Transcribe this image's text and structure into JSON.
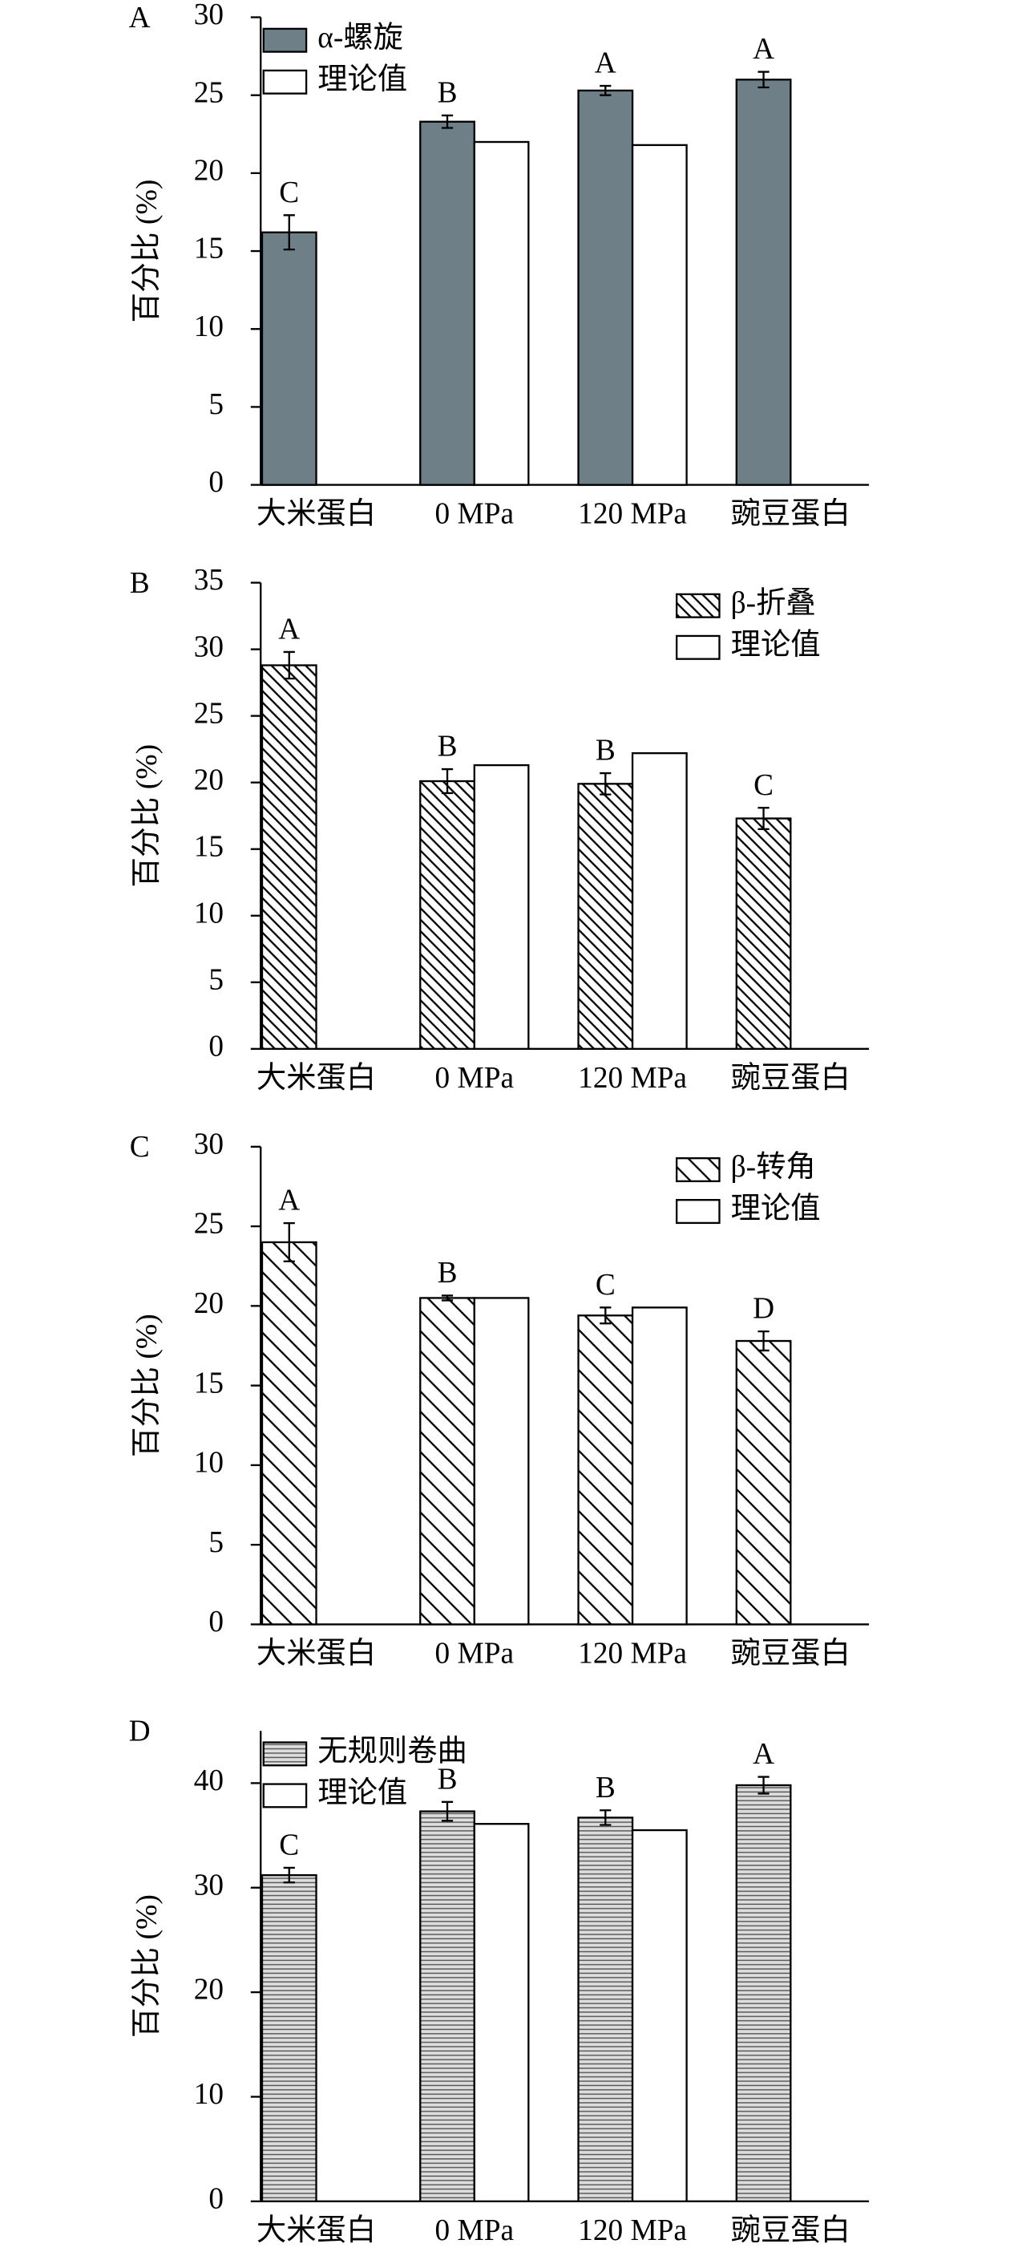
{
  "chart_data": [
    {
      "type": "bar",
      "panel": "A",
      "y_label": "百分比 (%)",
      "categories": [
        "大米蛋白",
        "0 MPa",
        "120 MPa",
        "豌豆蛋白"
      ],
      "series": [
        {
          "name": "α-螺旋",
          "color": "#6f7f87",
          "pattern": "solid",
          "values": [
            16.2,
            23.3,
            25.3,
            26.0
          ],
          "errors": [
            1.1,
            0.4,
            0.3,
            0.5
          ],
          "annotations": [
            "C",
            "B",
            "A",
            "A"
          ]
        },
        {
          "name": "理论值",
          "color": "#ffffff",
          "pattern": "solid",
          "values": [
            null,
            22.0,
            21.8,
            null
          ]
        }
      ],
      "ylim": [
        0,
        30
      ],
      "yticks": [
        0,
        5,
        10,
        15,
        20,
        25,
        30
      ],
      "legend": "top-left"
    },
    {
      "type": "bar",
      "panel": "B",
      "y_label": "百分比 (%)",
      "categories": [
        "大米蛋白",
        "0 MPa",
        "120 MPa",
        "豌豆蛋白"
      ],
      "series": [
        {
          "name": "β-折叠",
          "color": "#000000",
          "pattern": "dense-diagonal",
          "values": [
            28.8,
            20.1,
            19.9,
            17.3
          ],
          "errors": [
            1.0,
            0.9,
            0.8,
            0.8
          ],
          "annotations": [
            "A",
            "B",
            "B",
            "C"
          ]
        },
        {
          "name": "理论值",
          "color": "#ffffff",
          "pattern": "solid",
          "values": [
            null,
            21.3,
            22.2,
            null
          ]
        }
      ],
      "ylim": [
        0,
        35
      ],
      "yticks": [
        0,
        5,
        10,
        15,
        20,
        25,
        30,
        35
      ],
      "legend": "top-right"
    },
    {
      "type": "bar",
      "panel": "C",
      "y_label": "百分比 (%)",
      "categories": [
        "大米蛋白",
        "0 MPa",
        "120 MPa",
        "豌豆蛋白"
      ],
      "series": [
        {
          "name": "β-转角",
          "color": "#000000",
          "pattern": "diagonal",
          "values": [
            24.0,
            20.5,
            19.4,
            17.8
          ],
          "errors": [
            1.2,
            0.15,
            0.5,
            0.6
          ],
          "annotations": [
            "A",
            "B",
            "C",
            "D"
          ]
        },
        {
          "name": "理论值",
          "color": "#ffffff",
          "pattern": "solid",
          "values": [
            null,
            20.5,
            19.9,
            null
          ]
        }
      ],
      "ylim": [
        0,
        30
      ],
      "yticks": [
        0,
        5,
        10,
        15,
        20,
        25,
        30
      ],
      "legend": "top-right"
    },
    {
      "type": "bar",
      "panel": "D",
      "y_label": "百分比 (%)",
      "categories": [
        "大米蛋白",
        "0 MPa",
        "120 MPa",
        "豌豆蛋白"
      ],
      "series": [
        {
          "name": "无规则卷曲",
          "color": "#555555",
          "pattern": "horizontal",
          "values": [
            31.2,
            37.3,
            36.7,
            39.8
          ],
          "errors": [
            0.7,
            0.9,
            0.7,
            0.8
          ],
          "annotations": [
            "C",
            "B",
            "B",
            "A"
          ]
        },
        {
          "name": "理论值",
          "color": "#ffffff",
          "pattern": "solid",
          "values": [
            null,
            36.1,
            35.5,
            null
          ]
        }
      ],
      "ylim": [
        0,
        45
      ],
      "yticks": [
        0,
        10,
        20,
        30,
        40
      ],
      "legend": "top-left"
    }
  ]
}
